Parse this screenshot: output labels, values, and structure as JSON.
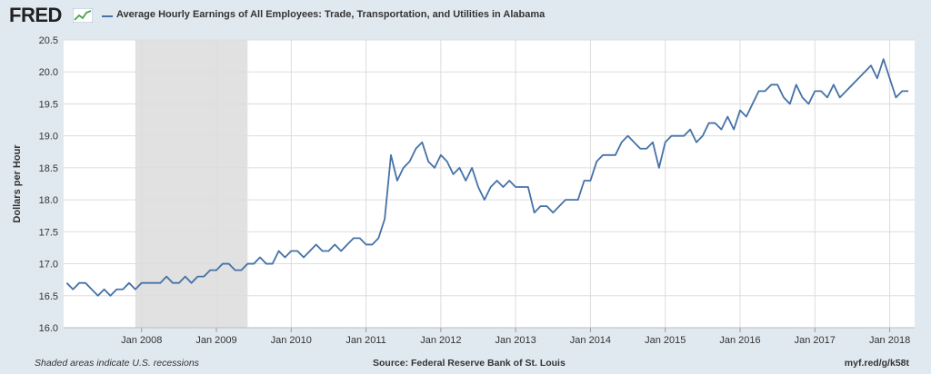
{
  "header": {
    "logo_text": "FRED",
    "logo_icon": "line-chart-icon",
    "legend_label": "Average Hourly Earnings of All Employees: Trade, Transportation, and Utilities in Alabama"
  },
  "footer": {
    "recession_note": "Shaded areas indicate U.S. recessions",
    "source": "Source: Federal Reserve Bank of St. Louis",
    "short_url": "myf.red/g/k58t"
  },
  "colors": {
    "background": "#e1e9f0",
    "plot_background": "#ffffff",
    "series": "#4572a7",
    "recession_shade": "#e1e1e1",
    "grid": "#dddddd"
  },
  "chart_data": {
    "type": "line",
    "title": "",
    "xlabel": "",
    "ylabel": "Dollars per Hour",
    "ylim": [
      16.0,
      20.5
    ],
    "yticks": [
      "16.0",
      "16.5",
      "17.0",
      "17.5",
      "18.0",
      "18.5",
      "19.0",
      "19.5",
      "20.0",
      "20.5"
    ],
    "xticks": [
      "Jan 2008",
      "Jan 2009",
      "Jan 2010",
      "Jan 2011",
      "Jan 2012",
      "Jan 2013",
      "Jan 2014",
      "Jan 2015",
      "Jan 2016",
      "Jan 2017",
      "Jan 2018"
    ],
    "x_start": "2007-01",
    "x_end": "2018-04",
    "grid": true,
    "legend_position": "top-left",
    "recessions": [
      {
        "start": "2007-12",
        "end": "2009-06"
      }
    ],
    "series": [
      {
        "name": "Average Hourly Earnings of All Employees: Trade, Transportation, and Utilities in Alabama",
        "values": [
          [
            "2007-01",
            16.7
          ],
          [
            "2007-02",
            16.6
          ],
          [
            "2007-03",
            16.7
          ],
          [
            "2007-04",
            16.7
          ],
          [
            "2007-05",
            16.6
          ],
          [
            "2007-06",
            16.5
          ],
          [
            "2007-07",
            16.6
          ],
          [
            "2007-08",
            16.5
          ],
          [
            "2007-09",
            16.6
          ],
          [
            "2007-10",
            16.6
          ],
          [
            "2007-11",
            16.7
          ],
          [
            "2007-12",
            16.6
          ],
          [
            "2008-01",
            16.7
          ],
          [
            "2008-02",
            16.7
          ],
          [
            "2008-03",
            16.7
          ],
          [
            "2008-04",
            16.7
          ],
          [
            "2008-05",
            16.8
          ],
          [
            "2008-06",
            16.7
          ],
          [
            "2008-07",
            16.7
          ],
          [
            "2008-08",
            16.8
          ],
          [
            "2008-09",
            16.7
          ],
          [
            "2008-10",
            16.8
          ],
          [
            "2008-11",
            16.8
          ],
          [
            "2008-12",
            16.9
          ],
          [
            "2009-01",
            16.9
          ],
          [
            "2009-02",
            17.0
          ],
          [
            "2009-03",
            17.0
          ],
          [
            "2009-04",
            16.9
          ],
          [
            "2009-05",
            16.9
          ],
          [
            "2009-06",
            17.0
          ],
          [
            "2009-07",
            17.0
          ],
          [
            "2009-08",
            17.1
          ],
          [
            "2009-09",
            17.0
          ],
          [
            "2009-10",
            17.0
          ],
          [
            "2009-11",
            17.2
          ],
          [
            "2009-12",
            17.1
          ],
          [
            "2010-01",
            17.2
          ],
          [
            "2010-02",
            17.2
          ],
          [
            "2010-03",
            17.1
          ],
          [
            "2010-04",
            17.2
          ],
          [
            "2010-05",
            17.3
          ],
          [
            "2010-06",
            17.2
          ],
          [
            "2010-07",
            17.2
          ],
          [
            "2010-08",
            17.3
          ],
          [
            "2010-09",
            17.2
          ],
          [
            "2010-10",
            17.3
          ],
          [
            "2010-11",
            17.4
          ],
          [
            "2010-12",
            17.4
          ],
          [
            "2011-01",
            17.3
          ],
          [
            "2011-02",
            17.3
          ],
          [
            "2011-03",
            17.4
          ],
          [
            "2011-04",
            17.7
          ],
          [
            "2011-05",
            18.7
          ],
          [
            "2011-06",
            18.3
          ],
          [
            "2011-07",
            18.5
          ],
          [
            "2011-08",
            18.6
          ],
          [
            "2011-09",
            18.8
          ],
          [
            "2011-10",
            18.9
          ],
          [
            "2011-11",
            18.6
          ],
          [
            "2011-12",
            18.5
          ],
          [
            "2012-01",
            18.7
          ],
          [
            "2012-02",
            18.6
          ],
          [
            "2012-03",
            18.4
          ],
          [
            "2012-04",
            18.5
          ],
          [
            "2012-05",
            18.3
          ],
          [
            "2012-06",
            18.5
          ],
          [
            "2012-07",
            18.2
          ],
          [
            "2012-08",
            18.0
          ],
          [
            "2012-09",
            18.2
          ],
          [
            "2012-10",
            18.3
          ],
          [
            "2012-11",
            18.2
          ],
          [
            "2012-12",
            18.3
          ],
          [
            "2013-01",
            18.2
          ],
          [
            "2013-02",
            18.2
          ],
          [
            "2013-03",
            18.2
          ],
          [
            "2013-04",
            17.8
          ],
          [
            "2013-05",
            17.9
          ],
          [
            "2013-06",
            17.9
          ],
          [
            "2013-07",
            17.8
          ],
          [
            "2013-08",
            17.9
          ],
          [
            "2013-09",
            18.0
          ],
          [
            "2013-10",
            18.0
          ],
          [
            "2013-11",
            18.0
          ],
          [
            "2013-12",
            18.3
          ],
          [
            "2014-01",
            18.3
          ],
          [
            "2014-02",
            18.6
          ],
          [
            "2014-03",
            18.7
          ],
          [
            "2014-04",
            18.7
          ],
          [
            "2014-05",
            18.7
          ],
          [
            "2014-06",
            18.9
          ],
          [
            "2014-07",
            19.0
          ],
          [
            "2014-08",
            18.9
          ],
          [
            "2014-09",
            18.8
          ],
          [
            "2014-10",
            18.8
          ],
          [
            "2014-11",
            18.9
          ],
          [
            "2014-12",
            18.5
          ],
          [
            "2015-01",
            18.9
          ],
          [
            "2015-02",
            19.0
          ],
          [
            "2015-03",
            19.0
          ],
          [
            "2015-04",
            19.0
          ],
          [
            "2015-05",
            19.1
          ],
          [
            "2015-06",
            18.9
          ],
          [
            "2015-07",
            19.0
          ],
          [
            "2015-08",
            19.2
          ],
          [
            "2015-09",
            19.2
          ],
          [
            "2015-10",
            19.1
          ],
          [
            "2015-11",
            19.3
          ],
          [
            "2015-12",
            19.1
          ],
          [
            "2016-01",
            19.4
          ],
          [
            "2016-02",
            19.3
          ],
          [
            "2016-03",
            19.5
          ],
          [
            "2016-04",
            19.7
          ],
          [
            "2016-05",
            19.7
          ],
          [
            "2016-06",
            19.8
          ],
          [
            "2016-07",
            19.8
          ],
          [
            "2016-08",
            19.6
          ],
          [
            "2016-09",
            19.5
          ],
          [
            "2016-10",
            19.8
          ],
          [
            "2016-11",
            19.6
          ],
          [
            "2016-12",
            19.5
          ],
          [
            "2017-01",
            19.7
          ],
          [
            "2017-02",
            19.7
          ],
          [
            "2017-03",
            19.6
          ],
          [
            "2017-04",
            19.8
          ],
          [
            "2017-05",
            19.6
          ],
          [
            "2017-06",
            19.7
          ],
          [
            "2017-07",
            19.8
          ],
          [
            "2017-08",
            19.9
          ],
          [
            "2017-09",
            20.0
          ],
          [
            "2017-10",
            20.1
          ],
          [
            "2017-11",
            19.9
          ],
          [
            "2017-12",
            20.2
          ],
          [
            "2018-01",
            19.9
          ],
          [
            "2018-02",
            19.6
          ],
          [
            "2018-03",
            19.7
          ],
          [
            "2018-04",
            19.7
          ]
        ]
      }
    ]
  }
}
